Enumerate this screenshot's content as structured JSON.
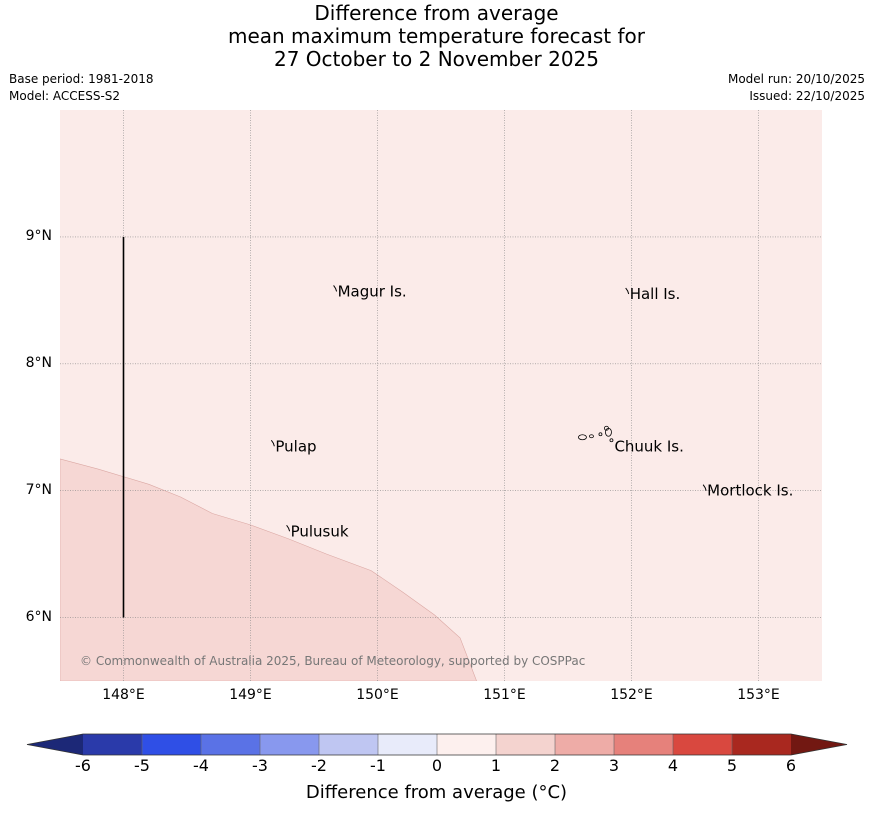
{
  "header": {
    "title_line1": "Difference from average",
    "title_line2": "mean maximum temperature forecast for",
    "title_line3": "27 October to 2 November 2025",
    "base_period": "Base period: 1981-2018",
    "model": "Model: ACCESS-S2",
    "model_run": "Model run: 20/10/2025",
    "issued": "Issued: 22/10/2025"
  },
  "map": {
    "lon_range": [
      147.5,
      153.5
    ],
    "lat_range": [
      5.5,
      10.0
    ],
    "lat_ticks": [
      {
        "value": 9,
        "label": "9°N"
      },
      {
        "value": 8,
        "label": "8°N"
      },
      {
        "value": 7,
        "label": "7°N"
      },
      {
        "value": 6,
        "label": "6°N"
      }
    ],
    "lon_ticks": [
      {
        "value": 148,
        "label": "148°E"
      },
      {
        "value": 149,
        "label": "149°E"
      },
      {
        "value": 150,
        "label": "150°E"
      },
      {
        "value": 151,
        "label": "151°E"
      },
      {
        "value": 152,
        "label": "152°E"
      },
      {
        "value": 153,
        "label": "153°E"
      }
    ],
    "places": [
      {
        "name": "Magur Is.",
        "lon": 149.67,
        "lat": 8.57
      },
      {
        "name": "Hall Is.",
        "lon": 151.97,
        "lat": 8.55
      },
      {
        "name": "Pulap",
        "lon": 149.18,
        "lat": 7.35
      },
      {
        "name": "Chuuk Is.",
        "lon": 151.85,
        "lat": 7.35
      },
      {
        "name": "Mortlock Is.",
        "lon": 152.58,
        "lat": 7.0
      },
      {
        "name": "Pulusuk",
        "lon": 149.3,
        "lat": 6.68
      }
    ],
    "anomaly_regions": [
      {
        "category": "0 to 1",
        "color": "#fbebe9",
        "description": "background anomaly"
      },
      {
        "category": "1 to 2",
        "color": "#f6d7d4",
        "boundary_lonlat": [
          [
            147.5,
            7.25
          ],
          [
            147.8,
            7.17
          ],
          [
            148.2,
            7.05
          ],
          [
            148.45,
            6.95
          ],
          [
            148.7,
            6.82
          ],
          [
            149.0,
            6.73
          ],
          [
            149.3,
            6.62
          ],
          [
            149.6,
            6.5
          ],
          [
            149.95,
            6.37
          ],
          [
            150.2,
            6.2
          ],
          [
            150.45,
            6.02
          ],
          [
            150.65,
            5.84
          ],
          [
            150.78,
            5.5
          ],
          [
            147.5,
            5.5
          ]
        ]
      }
    ],
    "transect": {
      "lon": 148.0,
      "lat_from": 6.0,
      "lat_to": 9.0
    },
    "copyright": "© Commonwealth of Australia 2025, Bureau of Meteorology, supported by COSPPac"
  },
  "colorbar": {
    "title": "Difference from average (°C)",
    "bounds": [
      -6,
      -5,
      -4,
      -3,
      -2,
      -1,
      0,
      1,
      2,
      3,
      4,
      5,
      6
    ],
    "labels": [
      "-6",
      "-5",
      "-4",
      "-3",
      "-2",
      "-1",
      "0",
      "1",
      "2",
      "3",
      "4",
      "5",
      "6"
    ],
    "colors": [
      "#2a3aaa",
      "#2f4fe6",
      "#5a72e6",
      "#8898ee",
      "#bfc6f2",
      "#e8ebfa",
      "#fdf0ee",
      "#f4d3cf",
      "#eeaca7",
      "#e6817b",
      "#d9483f",
      "#a9281f"
    ],
    "under_color": "#1c2877",
    "over_color": "#721812"
  }
}
